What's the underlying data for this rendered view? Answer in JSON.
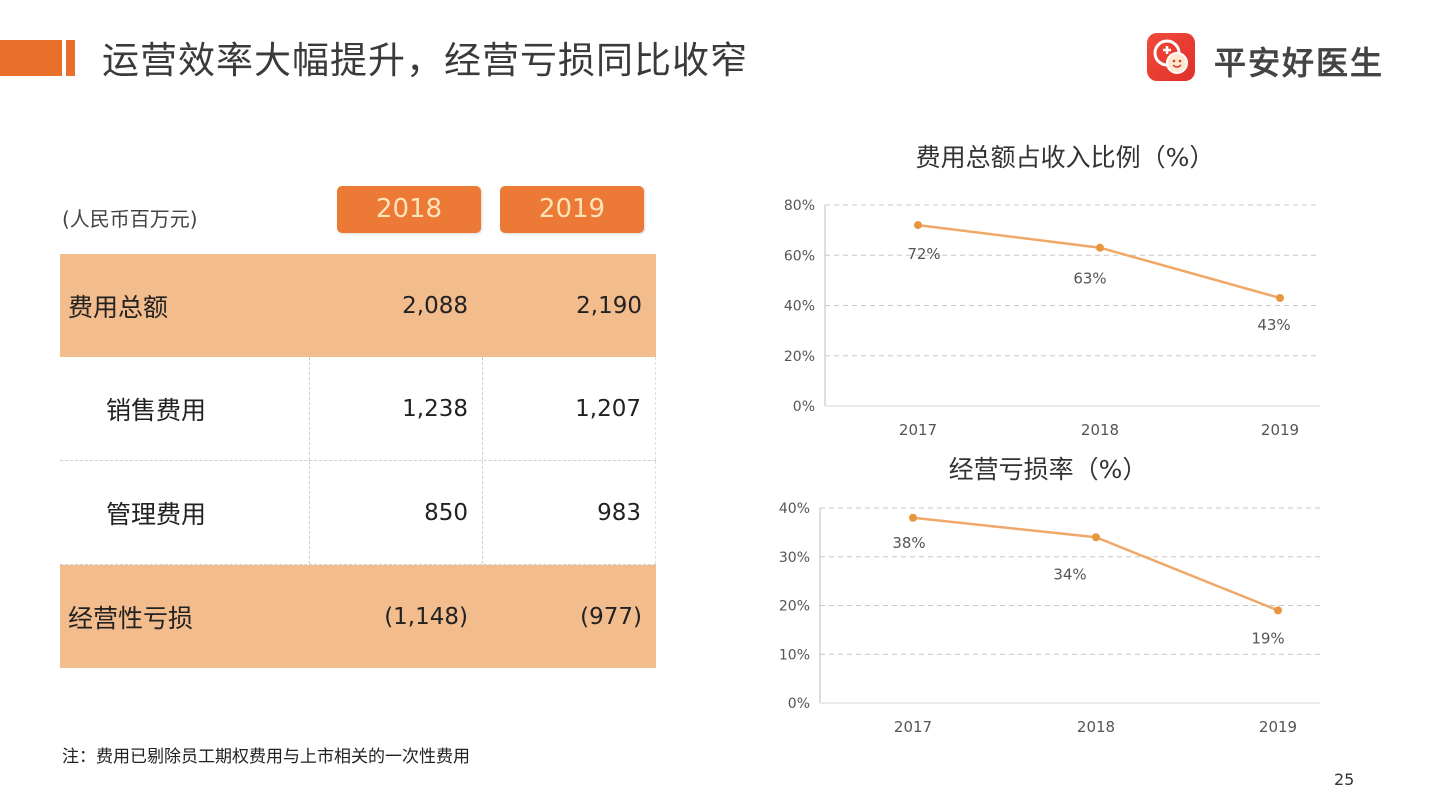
{
  "header": {
    "title": "运营效率大幅提升，经营亏损同比收窄",
    "logo_text": "平安好医生",
    "accent_color": "#e8702a"
  },
  "table": {
    "unit": "(人民币百万元)",
    "years": [
      "2018",
      "2019"
    ],
    "rows": [
      {
        "label": "费用总额",
        "v2018": "2,088",
        "v2019": "2,190",
        "shaded": true,
        "indent": false
      },
      {
        "label": "销售费用",
        "v2018": "1,238",
        "v2019": "1,207",
        "shaded": false,
        "indent": true
      },
      {
        "label": "管理费用",
        "v2018": "850",
        "v2019": "983",
        "shaded": false,
        "indent": true
      },
      {
        "label": "经营性亏损",
        "v2018": "(1,148)",
        "v2019": "(977)",
        "shaded": true,
        "indent": false
      }
    ]
  },
  "note": "注：费用已剔除员工期权费用与上市相关的一次性费用",
  "page_number": "25",
  "chart_data": [
    {
      "type": "line",
      "title": "费用总额占收入比例（%）",
      "categories": [
        "2017",
        "2018",
        "2019"
      ],
      "values": [
        72,
        63,
        43
      ],
      "data_labels": [
        "72%",
        "63%",
        "43%"
      ],
      "ylim": [
        0,
        80
      ],
      "yticks": [
        "0%",
        "20%",
        "40%",
        "60%",
        "80%"
      ],
      "ytick_values": [
        0,
        20,
        40,
        60,
        80
      ],
      "grid": true,
      "xlabel": "",
      "ylabel": "",
      "color": "#f0a868"
    },
    {
      "type": "line",
      "title": "经营亏损率（%）",
      "categories": [
        "2017",
        "2018",
        "2019"
      ],
      "values": [
        38,
        34,
        19
      ],
      "data_labels": [
        "38%",
        "34%",
        "19%"
      ],
      "ylim": [
        0,
        40
      ],
      "yticks": [
        "0%",
        "10%",
        "20%",
        "30%",
        "40%"
      ],
      "ytick_values": [
        0,
        10,
        20,
        30,
        40
      ],
      "grid": true,
      "xlabel": "",
      "ylabel": "",
      "color": "#f0a868"
    }
  ]
}
